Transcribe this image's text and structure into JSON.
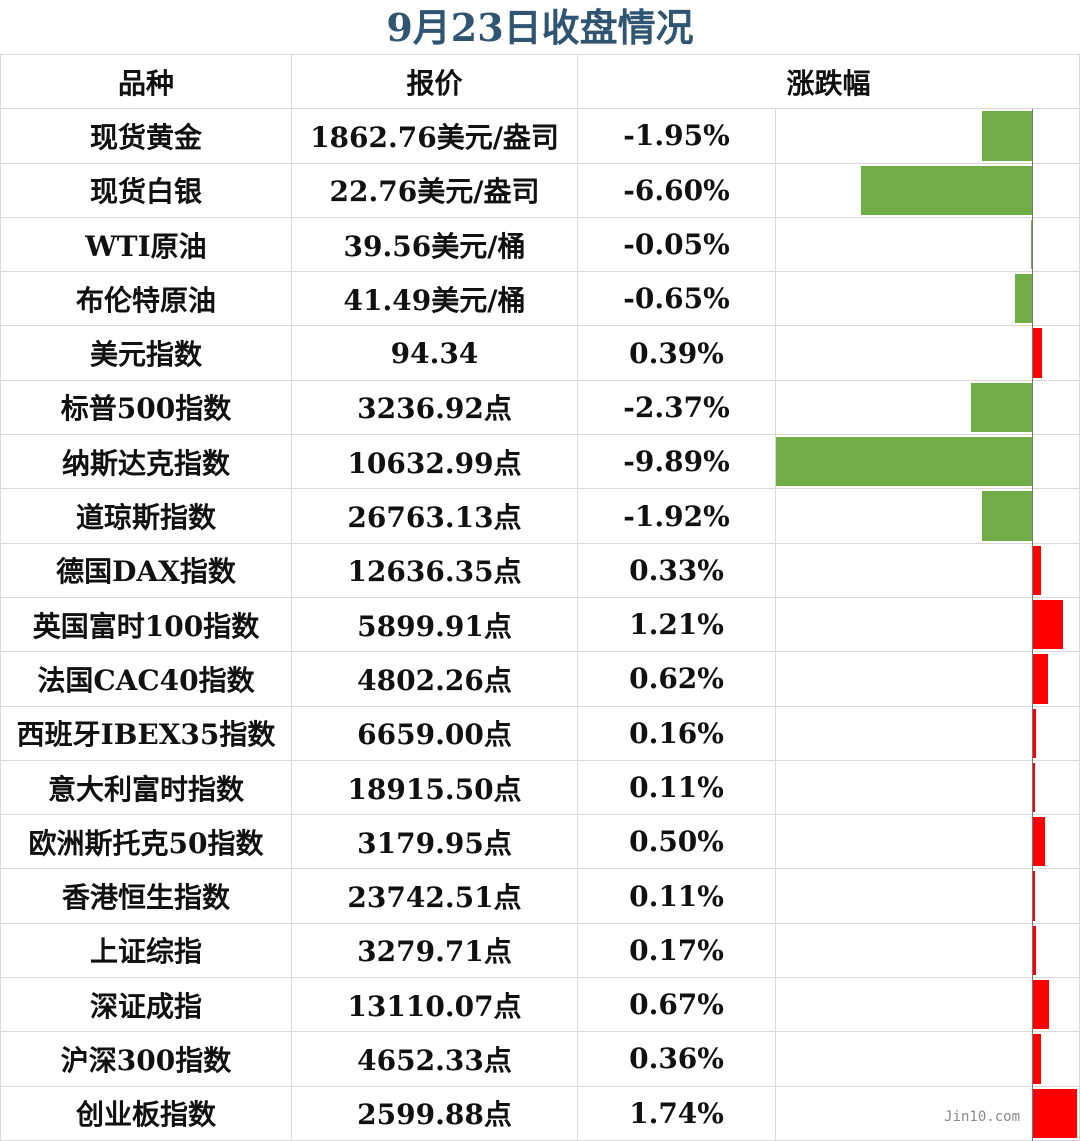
{
  "title": "9月23日收盘情况",
  "colors": {
    "title": "#2f5572",
    "up": "#ff0000",
    "down": "#70ad47"
  },
  "headers": {
    "name": "品种",
    "price": "报价",
    "change": "涨跌幅"
  },
  "watermark": "Jin10.com",
  "rows": [
    {
      "name": "现货黄金",
      "price": "1862.76美元/盎司",
      "change": "-1.95%"
    },
    {
      "name": "现货白银",
      "price": "22.76美元/盎司",
      "change": "-6.60%"
    },
    {
      "name": "WTI原油",
      "price": "39.56美元/桶",
      "change": "-0.05%"
    },
    {
      "name": "布伦特原油",
      "price": "41.49美元/桶",
      "change": "-0.65%"
    },
    {
      "name": "美元指数",
      "price": "94.34",
      "change": "0.39%"
    },
    {
      "name": "标普500指数",
      "price": "3236.92点",
      "change": "-2.37%"
    },
    {
      "name": "纳斯达克指数",
      "price": "10632.99点",
      "change": "-9.89%"
    },
    {
      "name": "道琼斯指数",
      "price": "26763.13点",
      "change": "-1.92%"
    },
    {
      "name": "德国DAX指数",
      "price": "12636.35点",
      "change": "0.33%"
    },
    {
      "name": "英国富时100指数",
      "price": "5899.91点",
      "change": "1.21%"
    },
    {
      "name": "法国CAC40指数",
      "price": "4802.26点",
      "change": "0.62%"
    },
    {
      "name": "西班牙IBEX35指数",
      "price": "6659.00点",
      "change": "0.16%"
    },
    {
      "name": "意大利富时指数",
      "price": "18915.50点",
      "change": "0.11%"
    },
    {
      "name": "欧洲斯托克50指数",
      "price": "3179.95点",
      "change": "0.50%"
    },
    {
      "name": "香港恒生指数",
      "price": "23742.51点",
      "change": "0.11%"
    },
    {
      "name": "上证综指",
      "price": "3279.71点",
      "change": "0.17%"
    },
    {
      "name": "深证成指",
      "price": "13110.07点",
      "change": "0.67%"
    },
    {
      "name": "沪深300指数",
      "price": "4652.33点",
      "change": "0.36%"
    },
    {
      "name": "创业板指数",
      "price": "2599.88点",
      "change": "1.74%"
    }
  ],
  "chart_data": {
    "type": "bar",
    "orientation": "horizontal",
    "title": "9月23日收盘情况",
    "ylabel": "涨跌幅",
    "categories": [
      "现货黄金",
      "现货白银",
      "WTI原油",
      "布伦特原油",
      "美元指数",
      "标普500指数",
      "纳斯达克指数",
      "道琼斯指数",
      "德国DAX指数",
      "英国富时100指数",
      "法国CAC40指数",
      "西班牙IBEX35指数",
      "意大利富时指数",
      "欧洲斯托克50指数",
      "香港恒生指数",
      "上证综指",
      "深证成指",
      "沪深300指数",
      "创业板指数"
    ],
    "values": [
      -1.95,
      -6.6,
      -0.05,
      -0.65,
      0.39,
      -2.37,
      -9.89,
      -1.92,
      0.33,
      1.21,
      0.62,
      0.16,
      0.11,
      0.5,
      0.11,
      0.17,
      0.67,
      0.36,
      1.74
    ],
    "unit": "%",
    "xlim": [
      -9.89,
      1.74
    ],
    "positive_color": "#ff0000",
    "negative_color": "#70ad47"
  }
}
